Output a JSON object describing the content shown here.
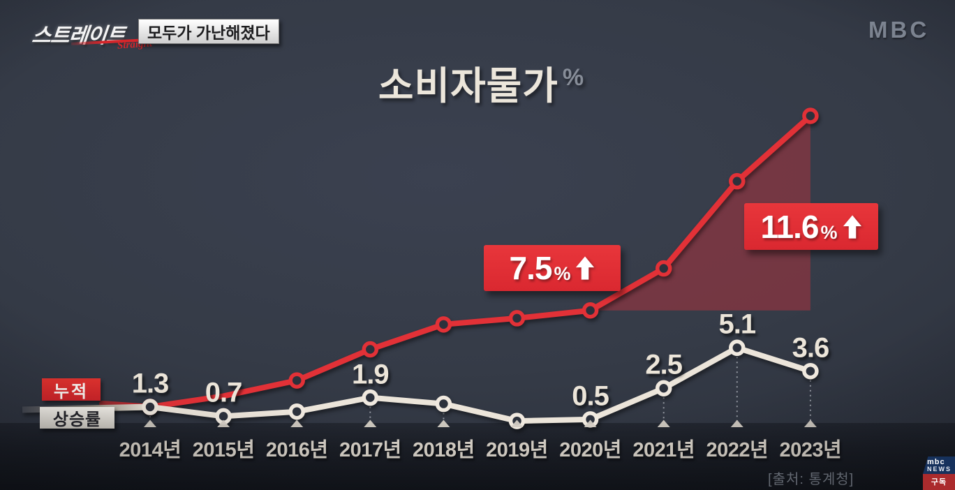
{
  "broadcast": {
    "program_logo": "스트레이트",
    "program_logo_script": "Straight",
    "episode_title": "모두가 가난해졌다",
    "channel_logo": "MBC",
    "source": "[출처: 통계청]",
    "watermark": {
      "brand": "mbc",
      "news": "NEWS",
      "subscribe": "구독"
    }
  },
  "chart_data": {
    "type": "line",
    "title": "소비자물가",
    "unit": "%",
    "categories": [
      "2014년",
      "2015년",
      "2016년",
      "2017년",
      "2018년",
      "2019년",
      "2020년",
      "2021년",
      "2022년",
      "2023년"
    ],
    "series": [
      {
        "name": "누적",
        "color": "#e23137",
        "values": [
          1.3,
          2.0,
          3.0,
          5.0,
          6.6,
          7.0,
          7.5,
          10.2,
          15.8,
          20.0
        ],
        "point_labels": [
          "",
          "",
          "",
          "",
          "",
          "",
          "",
          "",
          "",
          ""
        ]
      },
      {
        "name": "상승률",
        "color": "#ece5da",
        "values": [
          1.3,
          0.7,
          1.0,
          1.9,
          1.5,
          0.4,
          0.5,
          2.5,
          5.1,
          3.6
        ],
        "point_labels": [
          "1.3",
          "0.7",
          "",
          "1.9",
          "",
          "",
          "0.5",
          "2.5",
          "5.1",
          "3.6"
        ]
      }
    ],
    "annotations": [
      {
        "value": "7.5",
        "unit": "%",
        "direction": "up",
        "anchor_year": "2020년"
      },
      {
        "value": "11.6",
        "unit": "%",
        "direction": "up",
        "anchor_year": "2023년"
      }
    ],
    "highlight_area": {
      "from_year": "2020년",
      "to_year": "2023년",
      "color": "#c0303c"
    },
    "legend": [
      "누적",
      "상승률"
    ],
    "ylim": [
      0,
      21
    ],
    "grid": "dotted vertical droplines",
    "legend_position": "bottom-left"
  }
}
